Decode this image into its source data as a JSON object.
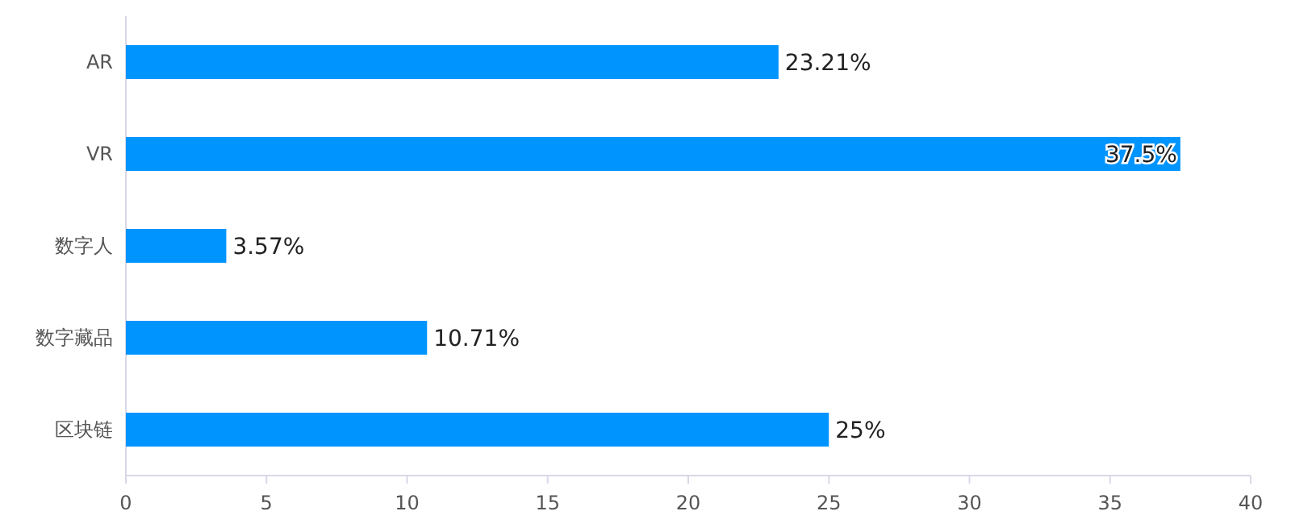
{
  "chart_data": {
    "type": "bar",
    "orientation": "horizontal",
    "categories": [
      "AR",
      "VR",
      "数字人",
      "数字藏品",
      "区块链"
    ],
    "values": [
      23.21,
      37.5,
      3.57,
      10.71,
      25
    ],
    "value_labels": [
      "23.21%",
      "37.5%",
      "3.57%",
      "10.71%",
      "25%"
    ],
    "color": "#0094ff",
    "xlim": [
      0,
      40
    ],
    "xticks": [
      0,
      5,
      10,
      15,
      20,
      25,
      30,
      35,
      40
    ],
    "grid": false
  }
}
